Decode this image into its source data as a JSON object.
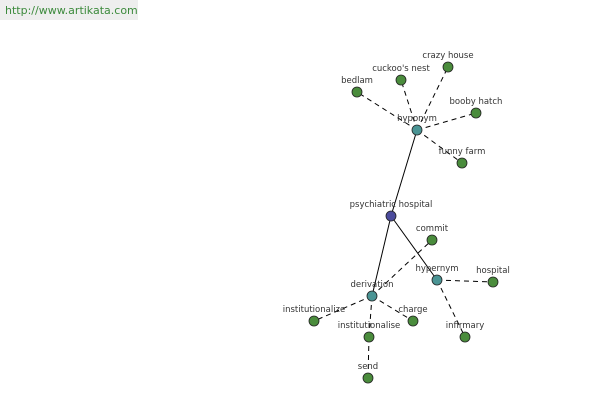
{
  "header": {
    "url": "http://www.artikata.com"
  },
  "nodes": [
    {
      "label": "psychiatric hospital"
    },
    {
      "label": "hyponym"
    },
    {
      "label": "hypernym"
    },
    {
      "label": "derivation"
    },
    {
      "label": "bedlam"
    },
    {
      "label": "cuckoo's nest"
    },
    {
      "label": "crazy house"
    },
    {
      "label": "booby hatch"
    },
    {
      "label": "funny farm"
    },
    {
      "label": "commit"
    },
    {
      "label": "hospital"
    },
    {
      "label": "infirmary"
    },
    {
      "label": "institutionalize"
    },
    {
      "label": "institutionalise"
    },
    {
      "label": "charge"
    },
    {
      "label": "send"
    }
  ]
}
